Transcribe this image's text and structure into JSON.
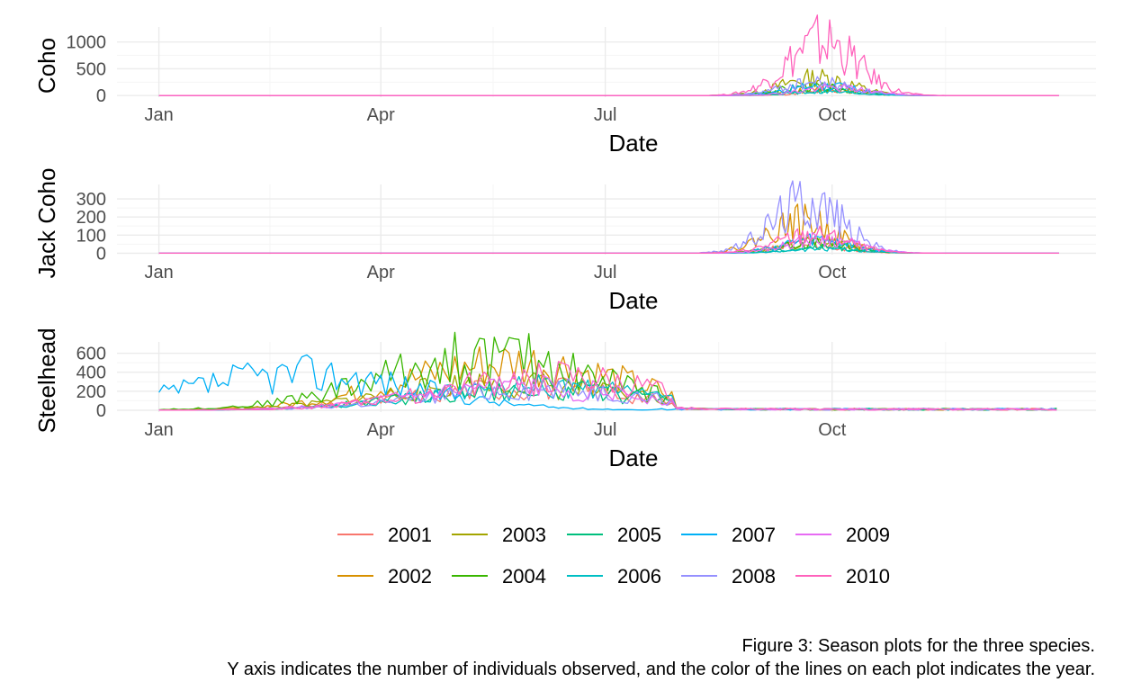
{
  "chart_data": [
    {
      "type": "line",
      "ylabel": "Coho",
      "xlabel": "Date",
      "x_tick_labels": [
        "Jan",
        "Apr",
        "Jul",
        "Oct"
      ],
      "x_tick_days": [
        1,
        91,
        182,
        274
      ],
      "y_ticks": [
        0,
        500,
        1000
      ],
      "ylim": [
        -30,
        1280
      ],
      "xlim": [
        -16,
        381
      ],
      "grid": true,
      "active_days": [
        225,
        360
      ],
      "series": [
        {
          "name": "2001",
          "peak": 110,
          "peak_day": 278,
          "seed": 11
        },
        {
          "name": "2002",
          "peak": 150,
          "peak_day": 272,
          "seed": 12
        },
        {
          "name": "2003",
          "peak": 420,
          "peak_day": 268,
          "seed": 13
        },
        {
          "name": "2004",
          "peak": 200,
          "peak_day": 266,
          "seed": 14
        },
        {
          "name": "2005",
          "peak": 120,
          "peak_day": 274,
          "seed": 15
        },
        {
          "name": "2006",
          "peak": 90,
          "peak_day": 270,
          "seed": 16
        },
        {
          "name": "2007",
          "peak": 230,
          "peak_day": 270,
          "seed": 17
        },
        {
          "name": "2008",
          "peak": 300,
          "peak_day": 268,
          "seed": 18
        },
        {
          "name": "2009",
          "peak": 180,
          "peak_day": 275,
          "seed": 19
        },
        {
          "name": "2010",
          "peak": 1260,
          "peak_day": 270,
          "seed": 20
        }
      ]
    },
    {
      "type": "line",
      "ylabel": "Jack Coho",
      "xlabel": "Date",
      "x_tick_labels": [
        "Jan",
        "Apr",
        "Jul",
        "Oct"
      ],
      "x_tick_days": [
        1,
        91,
        182,
        274
      ],
      "y_ticks": [
        0,
        100,
        200,
        300
      ],
      "ylim": [
        -8,
        380
      ],
      "xlim": [
        -16,
        381
      ],
      "grid": true,
      "active_days": [
        220,
        340
      ],
      "series": [
        {
          "name": "2001",
          "peak": 60,
          "peak_day": 265,
          "seed": 21
        },
        {
          "name": "2002",
          "peak": 220,
          "peak_day": 262,
          "seed": 22
        },
        {
          "name": "2003",
          "peak": 80,
          "peak_day": 268,
          "seed": 23
        },
        {
          "name": "2004",
          "peak": 70,
          "peak_day": 266,
          "seed": 24
        },
        {
          "name": "2005",
          "peak": 40,
          "peak_day": 270,
          "seed": 25
        },
        {
          "name": "2006",
          "peak": 30,
          "peak_day": 272,
          "seed": 26
        },
        {
          "name": "2007",
          "peak": 90,
          "peak_day": 268,
          "seed": 27
        },
        {
          "name": "2008",
          "peak": 370,
          "peak_day": 264,
          "seed": 28
        },
        {
          "name": "2009",
          "peak": 100,
          "peak_day": 270,
          "seed": 29
        },
        {
          "name": "2010",
          "peak": 130,
          "peak_day": 266,
          "seed": 30
        }
      ]
    },
    {
      "type": "line",
      "ylabel": "Steelhead",
      "xlabel": "Date",
      "x_tick_labels": [
        "Jan",
        "Apr",
        "Jul",
        "Oct"
      ],
      "x_tick_days": [
        1,
        91,
        182,
        274
      ],
      "y_ticks": [
        0,
        200,
        400,
        600
      ],
      "ylim": [
        -20,
        720
      ],
      "xlim": [
        -16,
        381
      ],
      "grid": true,
      "active_days": [
        1,
        366
      ],
      "series": [
        {
          "name": "2001",
          "peak": 300,
          "peak_day": 150,
          "seed": 31
        },
        {
          "name": "2002",
          "peak": 620,
          "peak_day": 145,
          "seed": 32
        },
        {
          "name": "2003",
          "peak": 350,
          "peak_day": 140,
          "seed": 33
        },
        {
          "name": "2004",
          "peak": 700,
          "peak_day": 135,
          "seed": 34
        },
        {
          "name": "2005",
          "peak": 280,
          "peak_day": 150,
          "seed": 35
        },
        {
          "name": "2006",
          "peak": 300,
          "peak_day": 155,
          "seed": 36
        },
        {
          "name": "2007",
          "peak": 480,
          "peak_day": 60,
          "seed": 37
        },
        {
          "name": "2008",
          "peak": 280,
          "peak_day": 155,
          "seed": 38
        },
        {
          "name": "2009",
          "peak": 300,
          "peak_day": 150,
          "seed": 39
        },
        {
          "name": "2010",
          "peak": 420,
          "peak_day": 160,
          "seed": 40
        }
      ]
    }
  ],
  "legend": {
    "placement": "bottom",
    "items": [
      {
        "label": "2001",
        "color": "#F8766D"
      },
      {
        "label": "2002",
        "color": "#D89000"
      },
      {
        "label": "2003",
        "color": "#A3A500"
      },
      {
        "label": "2004",
        "color": "#39B600"
      },
      {
        "label": "2005",
        "color": "#00BF7D"
      },
      {
        "label": "2006",
        "color": "#00BFC4"
      },
      {
        "label": "2007",
        "color": "#00B0F6"
      },
      {
        "label": "2008",
        "color": "#9590FF"
      },
      {
        "label": "2009",
        "color": "#E76BF3"
      },
      {
        "label": "2010",
        "color": "#FF62BC"
      }
    ]
  },
  "caption": {
    "line1": "Figure 3: Season plots for the three species.",
    "line2": "Y axis indicates the number of individuals observed, and the color of the lines on each plot indicates the year."
  },
  "colors": {
    "grid_major": "#EBEBEB",
    "grid_minor": "#F5F5F5"
  }
}
